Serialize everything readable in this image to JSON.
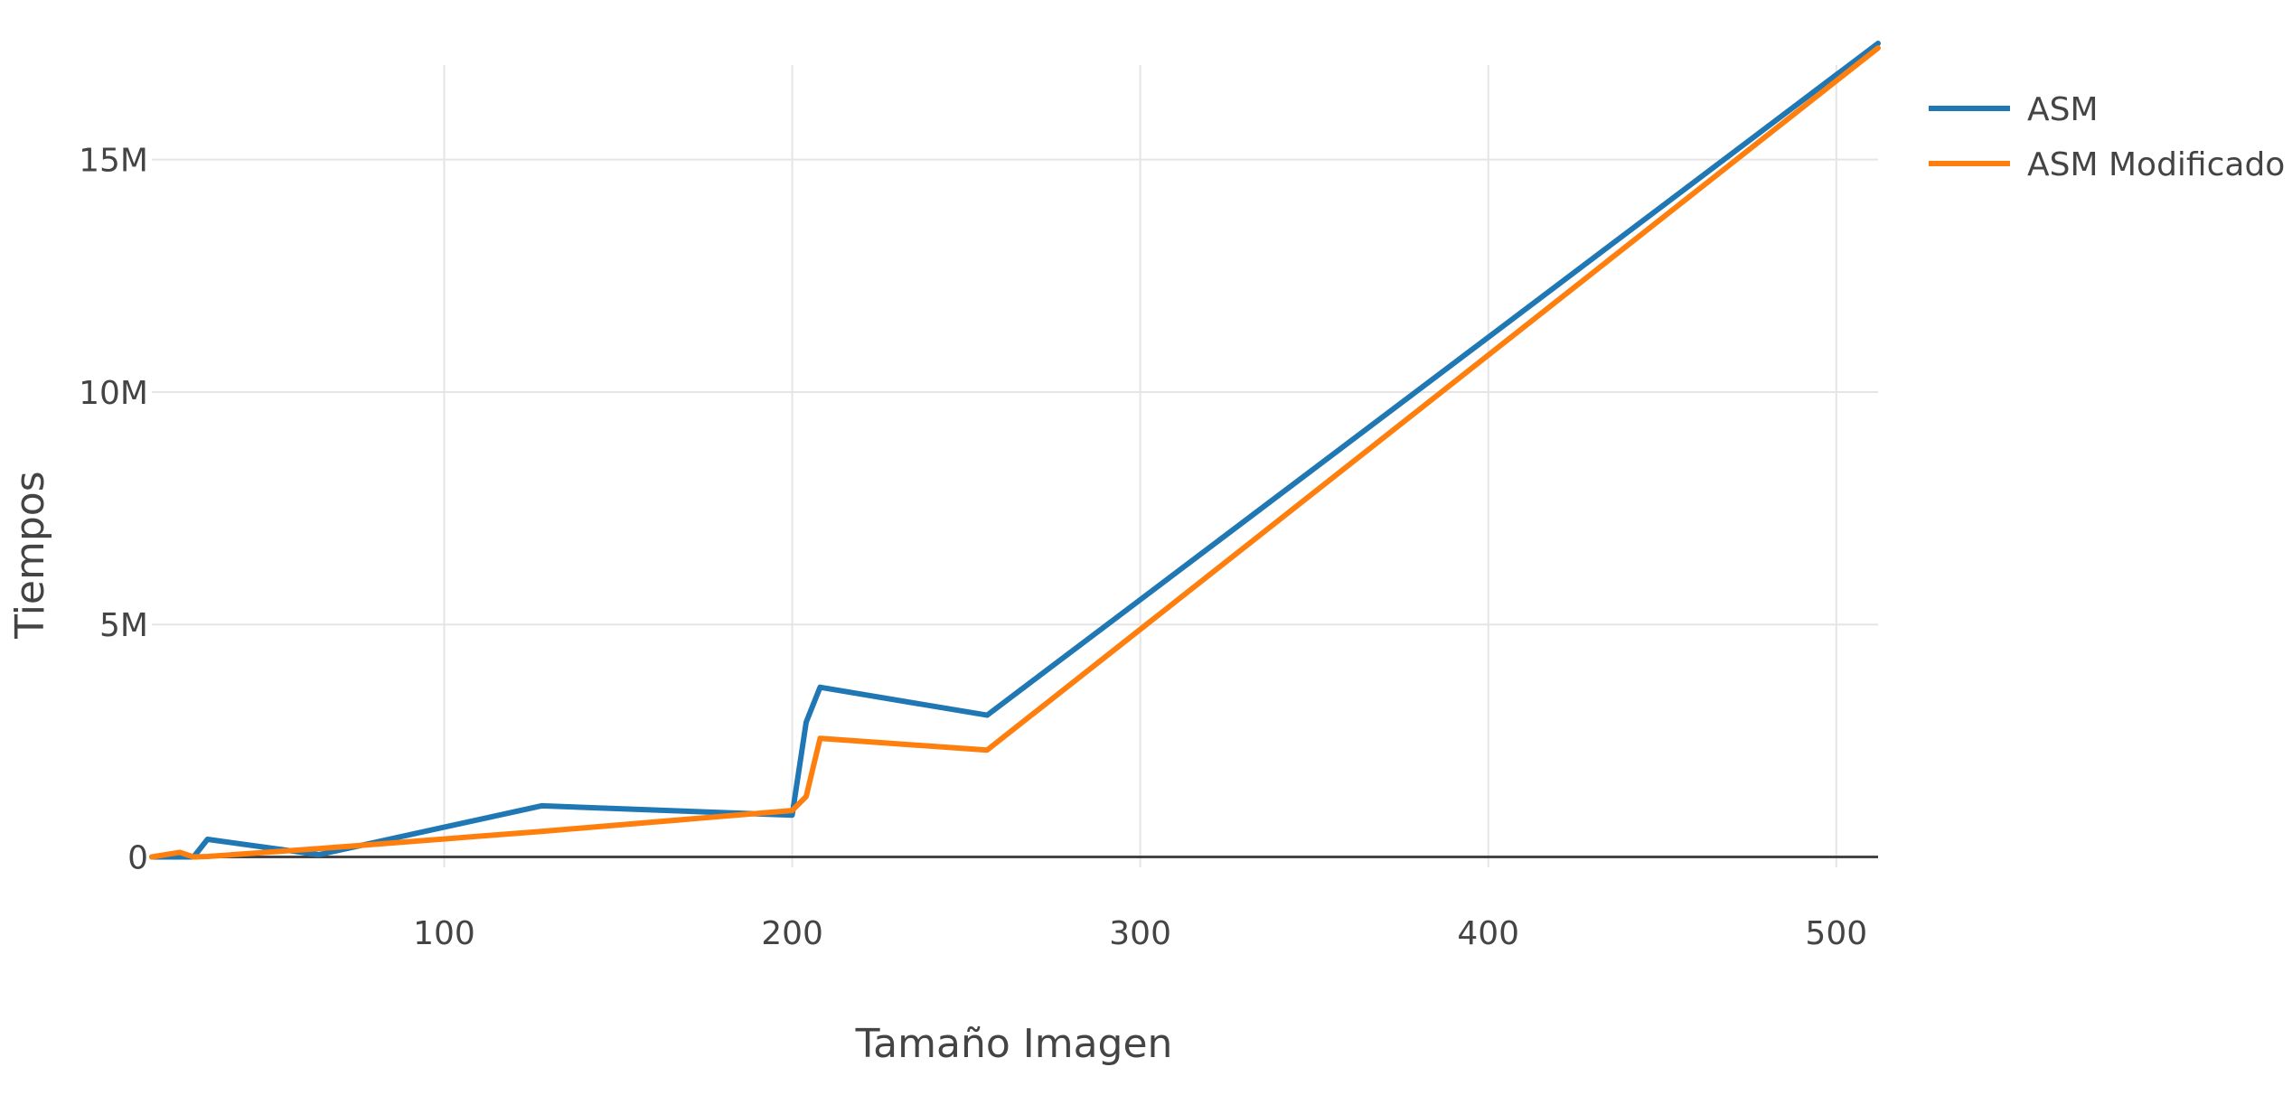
{
  "chart_data": {
    "type": "line",
    "xlabel": "Tamaño Imagen",
    "ylabel": "Tiempos",
    "xlim": [
      16,
      512
    ],
    "ylim": [
      -1000000,
      17500000
    ],
    "grid": true,
    "legend_position": "top-right",
    "x_ticks": [
      {
        "value": 100,
        "label": "100"
      },
      {
        "value": 200,
        "label": "200"
      },
      {
        "value": 300,
        "label": "300"
      },
      {
        "value": 400,
        "label": "400"
      },
      {
        "value": 500,
        "label": "500"
      }
    ],
    "y_ticks": [
      {
        "value": 0,
        "label": "0"
      },
      {
        "value": 5000000,
        "label": "5M"
      },
      {
        "value": 10000000,
        "label": "10M"
      },
      {
        "value": 15000000,
        "label": "15M"
      }
    ],
    "series": [
      {
        "name": "ASM",
        "color": "#1f77b4",
        "x": [
          16,
          24,
          28,
          32,
          64,
          128,
          200,
          204,
          208,
          256,
          512
        ],
        "y": [
          0,
          0,
          0,
          380000,
          50000,
          1100000,
          900000,
          2900000,
          3650000,
          3050000,
          17500000
        ]
      },
      {
        "name": "ASM Modificado",
        "color": "#ff7f0e",
        "x": [
          16,
          24,
          28,
          32,
          64,
          128,
          200,
          204,
          208,
          256,
          512
        ],
        "y": [
          0,
          100000,
          0,
          10000,
          180000,
          550000,
          1000000,
          1300000,
          2550000,
          2300000,
          17400000
        ]
      }
    ]
  }
}
